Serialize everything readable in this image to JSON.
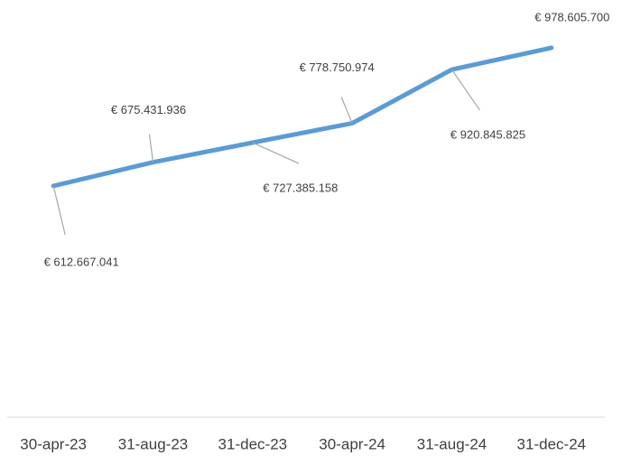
{
  "chart_data": {
    "type": "line",
    "categories": [
      "30-apr-23",
      "31-aug-23",
      "31-dec-23",
      "30-apr-24",
      "31-aug-24",
      "31-dec-24"
    ],
    "series": [
      {
        "color": "#5b9bd5",
        "values": [
          612667041,
          675431936,
          727385158,
          778750974,
          920845825,
          978605700
        ],
        "value_labels": [
          "€ 612.667.041",
          "€ 675.431.936",
          "€ 727.385.158",
          "€ 778.750.974",
          "€ 920.845.825",
          "€ 978.605.700"
        ]
      }
    ],
    "ylim": [
      0,
      1000000000
    ]
  }
}
